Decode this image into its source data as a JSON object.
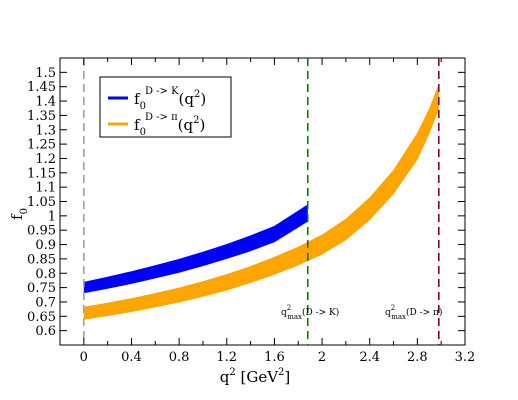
{
  "chart_data": {
    "type": "area",
    "xlim": [
      -0.2,
      3.2
    ],
    "ylim": [
      0.55,
      1.55
    ],
    "x_ticks": [
      "0",
      "0.4",
      "0.8",
      "1.2",
      "1.6",
      "2",
      "2.4",
      "2.8",
      "3.2"
    ],
    "x_tick_values": [
      0,
      0.4,
      0.8,
      1.2,
      1.6,
      2.0,
      2.4,
      2.8,
      3.2
    ],
    "y_ticks": [
      "0.6",
      "0.65",
      "0.7",
      "0.75",
      "0.8",
      "0.85",
      "0.9",
      "0.95",
      "1",
      "1.05",
      "1.1",
      "1.15",
      "1.2",
      "1.25",
      "1.3",
      "1.35",
      "1.4",
      "1.45",
      "1.5"
    ],
    "y_tick_values": [
      0.6,
      0.65,
      0.7,
      0.75,
      0.8,
      0.85,
      0.9,
      0.95,
      1.0,
      1.05,
      1.1,
      1.15,
      1.2,
      1.25,
      1.3,
      1.35,
      1.4,
      1.45,
      1.5
    ],
    "xlabel": {
      "base": "q",
      "sup": "2",
      "rest": "  [GeV",
      "sup2": "2",
      "end": "]"
    },
    "ylabel": {
      "base": "f",
      "sub": "0"
    },
    "grid": false,
    "legend_position": "top-left",
    "series": [
      {
        "name": "f0 D->K (q2)",
        "legend": {
          "base": "f",
          "sub": "0",
          "sup": "D -> K",
          "tail": "(q",
          "tail_sup": "2",
          "end": ")"
        },
        "color": "#0000ff",
        "x": [
          0,
          0.2,
          0.4,
          0.6,
          0.8,
          1.0,
          1.2,
          1.4,
          1.6,
          1.88
        ],
        "upper": [
          0.77,
          0.788,
          0.807,
          0.828,
          0.85,
          0.875,
          0.902,
          0.932,
          0.965,
          1.04
        ],
        "lower": [
          0.73,
          0.746,
          0.763,
          0.782,
          0.802,
          0.825,
          0.85,
          0.877,
          0.908,
          0.98
        ]
      },
      {
        "name": "f0 D->pi (q2)",
        "legend": {
          "base": "f",
          "sub": "0",
          "sup": "D -> π",
          "tail": "(q",
          "tail_sup": "2",
          "end": ")"
        },
        "color": "#ffa500",
        "x": [
          0,
          0.2,
          0.4,
          0.6,
          0.8,
          1.0,
          1.2,
          1.4,
          1.6,
          1.8,
          2.0,
          2.2,
          2.4,
          2.6,
          2.8,
          2.9,
          2.98
        ],
        "upper": [
          0.683,
          0.697,
          0.713,
          0.731,
          0.75,
          0.772,
          0.797,
          0.825,
          0.857,
          0.892,
          0.935,
          0.99,
          1.065,
          1.16,
          1.29,
          1.375,
          1.46
        ],
        "lower": [
          0.638,
          0.651,
          0.665,
          0.681,
          0.698,
          0.718,
          0.74,
          0.766,
          0.795,
          0.827,
          0.865,
          0.915,
          0.985,
          1.075,
          1.195,
          1.285,
          1.37
        ]
      }
    ],
    "vlines": [
      {
        "x": 0,
        "color": "#a0a0a0",
        "label": null
      },
      {
        "x": 1.88,
        "color": "#008000",
        "label": {
          "base": "q",
          "sup": "2",
          "sub": "max",
          "rest": "(D -> K)"
        }
      },
      {
        "x": 2.98,
        "color": "#800040",
        "label": {
          "base": "q",
          "sup": "2",
          "sub": "max",
          "rest": "(D -> π)"
        }
      }
    ]
  }
}
